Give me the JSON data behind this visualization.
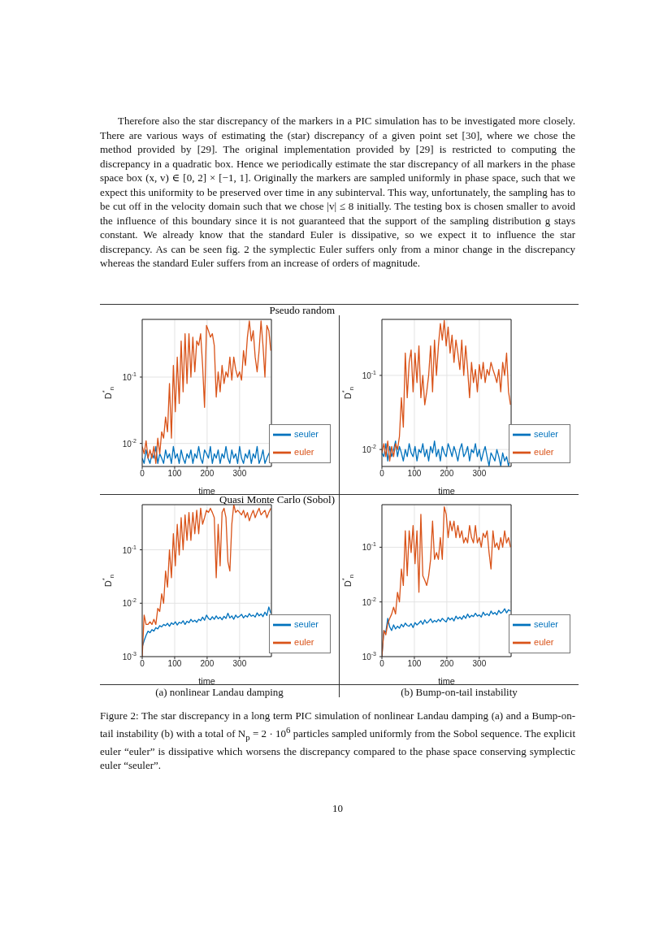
{
  "chart_data": [
    {
      "type": "line",
      "title": "Pseudo random",
      "xlabel": "time",
      "ylabel": "D$^{*}$$_{n}$",
      "log": "y",
      "grid": true,
      "legend": "bottom right",
      "annotations": [
        "Therefore also the star discrepancy of the markers in a PIC simulation has to be investigated more closely. There are various ways of estimating the (star) discrepancy of a given point set [30], where we chose the method provided by [29]. The original implementation provided by [29] is restricted to computing the discrepancy in a quadratic box. Hence we periodically estimate the star discrepancy of all markers in the phase space box (x, v) ∈ [0, 2] × [−1, 1]. Originally the markers are sampled uniformly in phase space, such that we expect this uniformity to be preserved over time in any subinterval. This way, unfortunately, the sampling has to be cut off in the velocity domain such that we chose |v| ≤ 8 initially. The testing box is chosen smaller to avoid the influence of this boundary since it is not guaranteed that the support of the sampling distribution g stays constant. We already know that the standard Euler is dissipative, so we expect it to influence the star discrepancy. As can be seen fig. 2 the symplectic Euler suffers only from a minor change in the discrepancy whereas the standard Euler suffers from an increase of orders of magnitude."
      ],
      "xlim": [
        0,
        398
      ],
      "xticks": [
        0,
        100,
        200,
        300
      ],
      "ylim": [
        0.0045,
        0.74
      ],
      "yticks": [
        {
          "value": 0.01,
          "label": "10$^{-2}$"
        },
        {
          "value": 0.1,
          "label": "10$^{-1}$"
        }
      ],
      "x": [
        0,
        6,
        12,
        18,
        24,
        30,
        36,
        42,
        48,
        54,
        60,
        66,
        72,
        78,
        84,
        90,
        96,
        102,
        108,
        114,
        120,
        126,
        132,
        138,
        144,
        150,
        156,
        162,
        168,
        174,
        180,
        186,
        192,
        198,
        204,
        210,
        216,
        222,
        228,
        234,
        240,
        246,
        252,
        258,
        264,
        270,
        276,
        282,
        288,
        294,
        300,
        306,
        312,
        318,
        324,
        330,
        336,
        342,
        348,
        354,
        360,
        366,
        372,
        378,
        384,
        390,
        396
      ],
      "series": [
        {
          "name": "seuler",
          "color": "#0072bd",
          "values": [
            0.006,
            0.005,
            0.008,
            0.006,
            0.005,
            0.007,
            0.006,
            0.009,
            0.005,
            0.007,
            0.006,
            0.005,
            0.008,
            0.006,
            0.007,
            0.005,
            0.009,
            0.006,
            0.007,
            0.005,
            0.008,
            0.006,
            0.005,
            0.007,
            0.006,
            0.008,
            0.005,
            0.007,
            0.006,
            0.009,
            0.006,
            0.005,
            0.008,
            0.007,
            0.006,
            0.009,
            0.005,
            0.007,
            0.006,
            0.008,
            0.005,
            0.007,
            0.006,
            0.009,
            0.006,
            0.005,
            0.008,
            0.006,
            0.007,
            0.005,
            0.009,
            0.006,
            0.005,
            0.007,
            0.006,
            0.008,
            0.005,
            0.007,
            0.006,
            0.009,
            0.005,
            0.006,
            0.008,
            0.005,
            0.006,
            0.007,
            0.008
          ]
        },
        {
          "name": "euler",
          "color": "#d95319",
          "values": [
            0.009,
            0.007,
            0.011,
            0.006,
            0.008,
            0.006,
            0.009,
            0.005,
            0.012,
            0.007,
            0.015,
            0.012,
            0.025,
            0.015,
            0.08,
            0.012,
            0.15,
            0.03,
            0.2,
            0.04,
            0.35,
            0.06,
            0.45,
            0.08,
            0.45,
            0.1,
            0.4,
            0.12,
            0.35,
            0.3,
            0.45,
            0.15,
            0.035,
            0.6,
            0.5,
            0.4,
            0.45,
            0.3,
            0.05,
            0.12,
            0.06,
            0.15,
            0.08,
            0.12,
            0.1,
            0.2,
            0.09,
            0.2,
            0.13,
            0.1,
            0.12,
            0.09,
            0.25,
            0.15,
            0.4,
            0.7,
            0.35,
            0.5,
            0.2,
            0.12,
            0.25,
            0.7,
            0.3,
            0.1,
            0.6,
            0.5,
            0.25
          ]
        }
      ]
    },
    {
      "type": "line",
      "xlabel": "time",
      "ylabel": "D$^{*}$$_{n}$",
      "log": "y",
      "grid": true,
      "legend": "bottom right",
      "xlim": [
        0,
        398
      ],
      "xticks": [
        0,
        100,
        200,
        300
      ],
      "ylim": [
        0.0059,
        0.57
      ],
      "yticks": [
        {
          "value": 0.01,
          "label": "10$^{-2}$"
        },
        {
          "value": 0.1,
          "label": "10$^{-1}$"
        }
      ],
      "x": [
        0,
        6,
        12,
        18,
        24,
        30,
        36,
        42,
        48,
        54,
        60,
        66,
        72,
        78,
        84,
        90,
        96,
        102,
        108,
        114,
        120,
        126,
        132,
        138,
        144,
        150,
        156,
        162,
        168,
        174,
        180,
        186,
        192,
        198,
        204,
        210,
        216,
        222,
        228,
        234,
        240,
        246,
        252,
        258,
        264,
        270,
        276,
        282,
        288,
        294,
        300,
        306,
        312,
        318,
        324,
        330,
        336,
        342,
        348,
        354,
        360,
        366,
        372,
        378,
        384,
        390,
        396
      ],
      "series": [
        {
          "name": "seuler",
          "color": "#0072bd",
          "values": [
            0.009,
            0.008,
            0.012,
            0.007,
            0.011,
            0.008,
            0.01,
            0.013,
            0.008,
            0.011,
            0.009,
            0.007,
            0.01,
            0.008,
            0.012,
            0.009,
            0.008,
            0.011,
            0.007,
            0.01,
            0.009,
            0.012,
            0.008,
            0.01,
            0.007,
            0.011,
            0.009,
            0.013,
            0.008,
            0.01,
            0.007,
            0.011,
            0.009,
            0.008,
            0.012,
            0.01,
            0.008,
            0.011,
            0.009,
            0.007,
            0.01,
            0.012,
            0.008,
            0.009,
            0.011,
            0.007,
            0.01,
            0.009,
            0.012,
            0.008,
            0.01,
            0.007,
            0.009,
            0.011,
            0.008,
            0.006,
            0.009,
            0.008,
            0.007,
            0.01,
            0.008,
            0.006,
            0.009,
            0.007,
            0.008,
            0.006,
            0.008
          ]
        },
        {
          "name": "euler",
          "color": "#d95319",
          "values": [
            0.009,
            0.012,
            0.008,
            0.013,
            0.007,
            0.011,
            0.008,
            0.012,
            0.01,
            0.015,
            0.05,
            0.02,
            0.2,
            0.05,
            0.15,
            0.22,
            0.06,
            0.2,
            0.08,
            0.25,
            0.05,
            0.1,
            0.04,
            0.06,
            0.1,
            0.25,
            0.06,
            0.3,
            0.1,
            0.25,
            0.5,
            0.3,
            0.55,
            0.25,
            0.45,
            0.2,
            0.35,
            0.15,
            0.3,
            0.2,
            0.12,
            0.3,
            0.1,
            0.25,
            0.12,
            0.05,
            0.15,
            0.08,
            0.12,
            0.06,
            0.14,
            0.09,
            0.15,
            0.08,
            0.12,
            0.1,
            0.15,
            0.12,
            0.1,
            0.08,
            0.12,
            0.06,
            0.15,
            0.1,
            0.2,
            0.06,
            0.04
          ]
        }
      ]
    },
    {
      "type": "line",
      "title": "Quasi Monte Carlo (Sobol)",
      "xlabel": "time",
      "ylabel": "D$^{*}$$_{n}$",
      "log": "y",
      "grid": true,
      "legend": "bottom right",
      "annotations": [
        "(a) nonlinear Landau damping"
      ],
      "xlim": [
        0,
        398
      ],
      "xticks": [
        0,
        100,
        200,
        300
      ],
      "ylim": [
        0.001,
        0.7
      ],
      "yticks": [
        {
          "value": 0.001,
          "label": "10$^{-3}$"
        },
        {
          "value": 0.01,
          "label": "10$^{-2}$"
        },
        {
          "value": 0.1,
          "label": "10$^{-1}$"
        }
      ],
      "x": [
        0,
        6,
        12,
        18,
        24,
        30,
        36,
        42,
        48,
        54,
        60,
        66,
        72,
        78,
        84,
        90,
        96,
        102,
        108,
        114,
        120,
        126,
        132,
        138,
        144,
        150,
        156,
        162,
        168,
        174,
        180,
        186,
        192,
        198,
        204,
        210,
        216,
        222,
        228,
        234,
        240,
        246,
        252,
        258,
        264,
        270,
        276,
        282,
        288,
        294,
        300,
        306,
        312,
        318,
        324,
        330,
        336,
        342,
        348,
        354,
        360,
        366,
        372,
        378,
        384,
        390,
        396
      ],
      "series": [
        {
          "name": "seuler",
          "color": "#0072bd",
          "values": [
            0.0015,
            0.002,
            0.0025,
            0.003,
            0.0028,
            0.0032,
            0.003,
            0.0035,
            0.0033,
            0.0038,
            0.0036,
            0.004,
            0.0038,
            0.0042,
            0.0037,
            0.0043,
            0.004,
            0.0045,
            0.0039,
            0.0044,
            0.0042,
            0.0047,
            0.004,
            0.0046,
            0.0043,
            0.005,
            0.0045,
            0.0048,
            0.0044,
            0.005,
            0.0047,
            0.0055,
            0.0048,
            0.006,
            0.0052,
            0.0049,
            0.0056,
            0.005,
            0.0058,
            0.0051,
            0.0055,
            0.0049,
            0.0057,
            0.0052,
            0.0065,
            0.0053,
            0.0058,
            0.005,
            0.006,
            0.0054,
            0.0057,
            0.0062,
            0.0053,
            0.0059,
            0.0055,
            0.0064,
            0.0057,
            0.006,
            0.0055,
            0.0066,
            0.0058,
            0.0063,
            0.0056,
            0.0068,
            0.0059,
            0.0085,
            0.0065
          ]
        },
        {
          "name": "euler",
          "color": "#d95319",
          "values": [
            0.001,
            0.006,
            0.004,
            0.004,
            0.0045,
            0.004,
            0.005,
            0.004,
            0.008,
            0.007,
            0.015,
            0.01,
            0.04,
            0.02,
            0.1,
            0.03,
            0.2,
            0.05,
            0.3,
            0.08,
            0.4,
            0.1,
            0.45,
            0.15,
            0.5,
            0.15,
            0.5,
            0.2,
            0.55,
            0.2,
            0.6,
            0.3,
            0.4,
            0.55,
            0.5,
            0.6,
            0.5,
            0.4,
            0.03,
            0.3,
            0.05,
            0.5,
            0.6,
            0.4,
            0.06,
            0.04,
            0.3,
            0.7,
            0.5,
            0.55,
            0.5,
            0.45,
            0.55,
            0.4,
            0.5,
            0.35,
            0.45,
            0.55,
            0.4,
            0.5,
            0.6,
            0.45,
            0.5,
            0.55,
            0.4,
            0.5,
            0.6
          ]
        }
      ]
    },
    {
      "type": "line",
      "xlabel": "time",
      "ylabel": "D$^{*}$$_{n}$",
      "log": "y",
      "grid": true,
      "legend": "bottom right",
      "annotations": [
        "(b) Bump-on-tail instability",
        "Figure 2: The star discrepancy in a long term PIC simulation of nonlinear Landau damping (a) and a Bump-on-tail instability (b) with a total of N$_{p}$ = 2 · 10$^{6}$ particles sampled uniformly from the Sobol sequence. The explicit euler “euler” is dissipative which worsens the discrepancy compared to the phase space conserving symplectic euler “seuler”.",
        "10"
      ],
      "xlim": [
        0,
        398
      ],
      "xticks": [
        0,
        100,
        200,
        300
      ],
      "ylim": [
        0.001,
        0.6
      ],
      "yticks": [
        {
          "value": 0.001,
          "label": "10$^{-3}$"
        },
        {
          "value": 0.01,
          "label": "10$^{-2}$"
        },
        {
          "value": 0.1,
          "label": "10$^{-1}$"
        }
      ],
      "x": [
        0,
        6,
        12,
        18,
        24,
        30,
        36,
        42,
        48,
        54,
        60,
        66,
        72,
        78,
        84,
        90,
        96,
        102,
        108,
        114,
        120,
        126,
        132,
        138,
        144,
        150,
        156,
        162,
        168,
        174,
        180,
        186,
        192,
        198,
        204,
        210,
        216,
        222,
        228,
        234,
        240,
        246,
        252,
        258,
        264,
        270,
        276,
        282,
        288,
        294,
        300,
        306,
        312,
        318,
        324,
        330,
        336,
        342,
        348,
        354,
        360,
        366,
        372,
        378,
        384,
        390,
        396
      ],
      "series": [
        {
          "name": "seuler",
          "color": "#0072bd",
          "values": [
            0.001,
            0.003,
            0.0028,
            0.005,
            0.0035,
            0.003,
            0.0038,
            0.0032,
            0.0036,
            0.0033,
            0.0039,
            0.0035,
            0.0041,
            0.0037,
            0.0036,
            0.004,
            0.0034,
            0.0042,
            0.0038,
            0.0041,
            0.0045,
            0.0039,
            0.0047,
            0.0041,
            0.0044,
            0.0049,
            0.0042,
            0.0046,
            0.0043,
            0.0048,
            0.0044,
            0.005,
            0.0046,
            0.0043,
            0.0052,
            0.0047,
            0.0051,
            0.0045,
            0.0055,
            0.0049,
            0.0053,
            0.0048,
            0.0056,
            0.005,
            0.006,
            0.0052,
            0.0057,
            0.0054,
            0.0062,
            0.0055,
            0.0058,
            0.0053,
            0.0065,
            0.0057,
            0.0061,
            0.0056,
            0.0068,
            0.006,
            0.0064,
            0.0058,
            0.007,
            0.0062,
            0.0066,
            0.0075,
            0.0063,
            0.0072,
            0.0068
          ]
        },
        {
          "name": "euler",
          "color": "#d95319",
          "values": [
            0.001,
            0.003,
            0.0025,
            0.004,
            0.005,
            0.006,
            0.008,
            0.006,
            0.015,
            0.01,
            0.04,
            0.02,
            0.2,
            0.03,
            0.2,
            0.08,
            0.25,
            0.05,
            0.2,
            0.015,
            0.4,
            0.03,
            0.025,
            0.02,
            0.03,
            0.06,
            0.3,
            0.06,
            0.08,
            0.06,
            0.15,
            0.06,
            0.55,
            0.4,
            0.15,
            0.3,
            0.2,
            0.3,
            0.15,
            0.25,
            0.15,
            0.2,
            0.12,
            0.15,
            0.12,
            0.25,
            0.15,
            0.12,
            0.25,
            0.12,
            0.15,
            0.1,
            0.18,
            0.15,
            0.2,
            0.08,
            0.04,
            0.2,
            0.1,
            0.12,
            0.09,
            0.15,
            0.1,
            0.2,
            0.12,
            0.15,
            0.1
          ]
        }
      ]
    }
  ]
}
